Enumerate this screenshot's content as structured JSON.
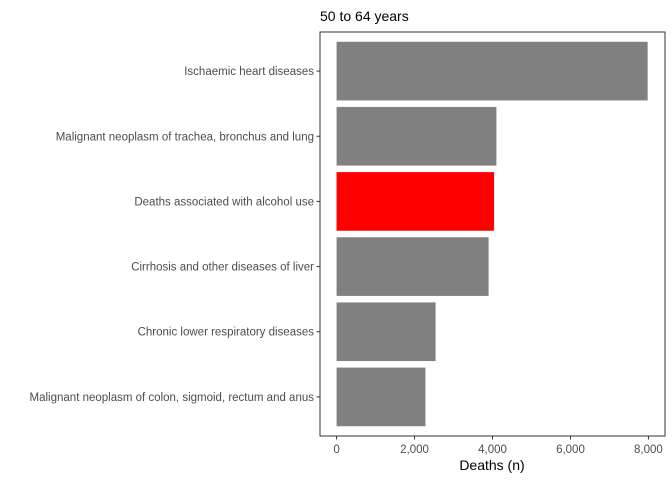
{
  "chart_data": {
    "type": "bar",
    "orientation": "horizontal",
    "title": "50 to 64 years",
    "xlabel": "Deaths (n)",
    "ylabel": "",
    "xlim": [
      -425,
      8425
    ],
    "x_ticks": [
      0,
      2000,
      4000,
      6000,
      8000
    ],
    "x_tick_labels": [
      "0",
      "2,000",
      "4,000",
      "6,000",
      "8,000"
    ],
    "categories": [
      "Ischaemic heart diseases",
      "Malignant neoplasm of trachea, bronchus and lung",
      "Deaths associated with alcohol use",
      "Cirrhosis and other diseases of liver",
      "Chronic lower respiratory diseases",
      "Malignant neoplasm of colon, sigmoid, rectum and anus"
    ],
    "values": [
      7980,
      4100,
      4040,
      3900,
      2540,
      2280
    ],
    "colors": [
      "#808080",
      "#808080",
      "#ff0000",
      "#808080",
      "#808080",
      "#808080"
    ],
    "grid": false,
    "legend": "none"
  }
}
